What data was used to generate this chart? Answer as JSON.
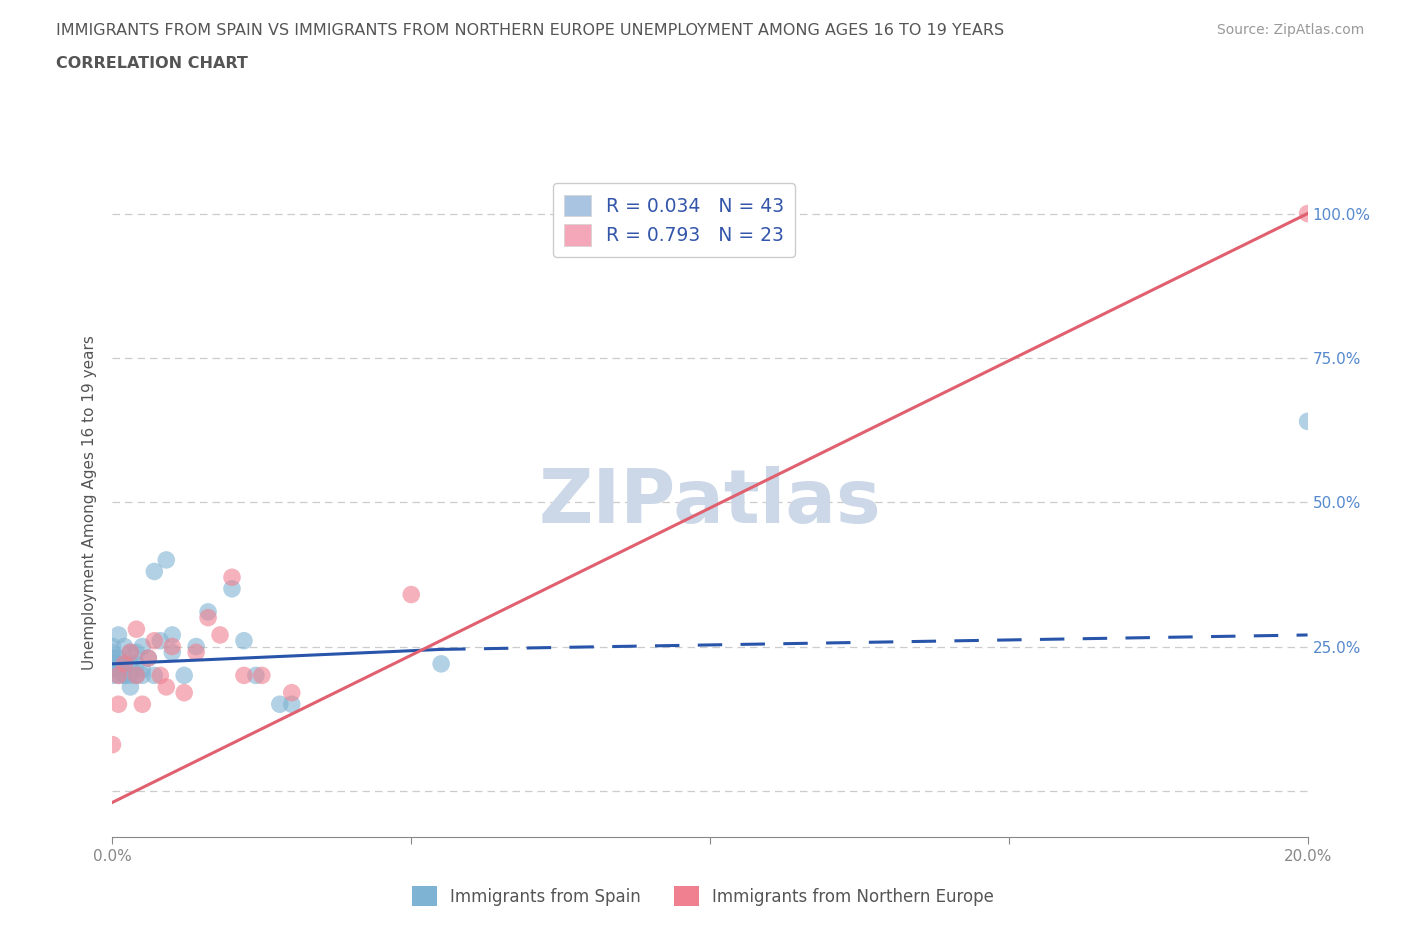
{
  "title_line1": "IMMIGRANTS FROM SPAIN VS IMMIGRANTS FROM NORTHERN EUROPE UNEMPLOYMENT AMONG AGES 16 TO 19 YEARS",
  "title_line2": "CORRELATION CHART",
  "source_text": "Source: ZipAtlas.com",
  "ylabel": "Unemployment Among Ages 16 to 19 years",
  "watermark": "ZIPatlas",
  "legend_entries": [
    {
      "label": "R = 0.034   N = 43",
      "color": "#a8c4e0"
    },
    {
      "label": "R = 0.793   N = 23",
      "color": "#f4a7b9"
    }
  ],
  "blue_scatter_x": [
    0.0,
    0.0,
    0.0,
    0.0,
    0.0,
    0.0,
    0.0,
    0.001,
    0.001,
    0.001,
    0.001,
    0.001,
    0.002,
    0.002,
    0.002,
    0.002,
    0.003,
    0.003,
    0.003,
    0.003,
    0.004,
    0.004,
    0.004,
    0.005,
    0.005,
    0.005,
    0.006,
    0.007,
    0.007,
    0.008,
    0.009,
    0.01,
    0.01,
    0.012,
    0.014,
    0.016,
    0.02,
    0.022,
    0.024,
    0.028,
    0.03,
    0.055,
    0.2
  ],
  "blue_scatter_y": [
    0.22,
    0.23,
    0.23,
    0.24,
    0.25,
    0.2,
    0.21,
    0.2,
    0.21,
    0.22,
    0.23,
    0.27,
    0.2,
    0.22,
    0.25,
    0.2,
    0.2,
    0.22,
    0.24,
    0.18,
    0.22,
    0.24,
    0.2,
    0.2,
    0.21,
    0.25,
    0.23,
    0.2,
    0.38,
    0.26,
    0.4,
    0.24,
    0.27,
    0.2,
    0.25,
    0.31,
    0.35,
    0.26,
    0.2,
    0.15,
    0.15,
    0.22,
    0.64
  ],
  "pink_scatter_x": [
    0.0,
    0.001,
    0.001,
    0.002,
    0.003,
    0.004,
    0.004,
    0.005,
    0.006,
    0.007,
    0.008,
    0.009,
    0.01,
    0.012,
    0.014,
    0.016,
    0.018,
    0.02,
    0.022,
    0.025,
    0.03,
    0.05,
    0.2
  ],
  "pink_scatter_y": [
    0.08,
    0.2,
    0.15,
    0.22,
    0.24,
    0.28,
    0.2,
    0.15,
    0.23,
    0.26,
    0.2,
    0.18,
    0.25,
    0.17,
    0.24,
    0.3,
    0.27,
    0.37,
    0.2,
    0.2,
    0.17,
    0.34,
    1.0
  ],
  "blue_trend_x": [
    0.0,
    0.055,
    0.2
  ],
  "blue_trend_y": [
    0.22,
    0.245,
    0.27
  ],
  "pink_trend_x": [
    0.0,
    0.2
  ],
  "pink_trend_y": [
    -0.02,
    1.0
  ],
  "xmin": 0.0,
  "xmax": 0.2,
  "ymin": -0.08,
  "ymax": 1.08,
  "x_ticks": [
    0.0,
    0.05,
    0.1,
    0.15,
    0.2
  ],
  "x_tick_labels": [
    "0.0%",
    "",
    "",
    "",
    "20.0%"
  ],
  "y_ticks": [
    0.0,
    0.25,
    0.5,
    0.75,
    1.0
  ],
  "right_tick_labels": [
    "",
    "25.0%",
    "50.0%",
    "75.0%",
    "100.0%"
  ],
  "bottom_legend": [
    "Immigrants from Spain",
    "Immigrants from Northern Europe"
  ],
  "blue_color": "#7fb3d3",
  "pink_color": "#f08090",
  "blue_line_color": "#2855aa",
  "pink_line_color": "#e06070",
  "title_color": "#555555",
  "axis_label_color": "#555555",
  "tick_color": "#888888",
  "grid_color": "#cccccc",
  "source_color": "#999999",
  "watermark_color": "#ccd8e8",
  "right_tick_color": "#5588cc",
  "legend_text_color": "#3355aa"
}
